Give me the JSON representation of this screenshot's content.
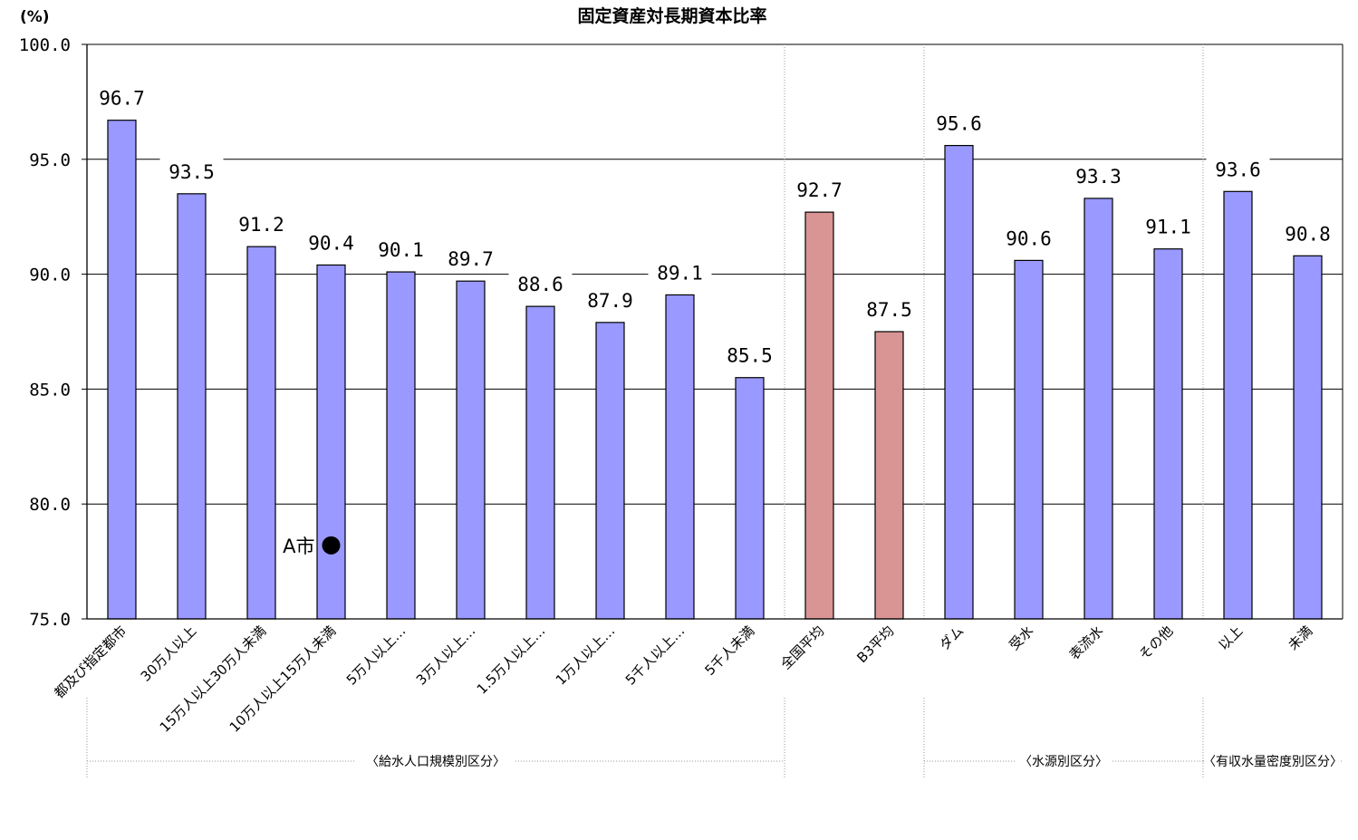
{
  "chart_data": {
    "type": "bar",
    "title": "固定資産対長期資本比率",
    "ylabel": "(%)",
    "xlabel": "",
    "ylim": [
      75.0,
      100.0
    ],
    "yticks": [
      "100.0",
      "95.0",
      "90.0",
      "85.0",
      "80.0",
      "75.0"
    ],
    "ytick_values": [
      100,
      95,
      90,
      85,
      80,
      75
    ],
    "grid": true,
    "categories": [
      "都及び指定都市",
      "30万人以上",
      "15万人以上30万人未満",
      "10万人以上15万人未満",
      "5万人以上…",
      "3万人以上…",
      "1.5万人以上…",
      "1万人以上…",
      "5千人以上…",
      "5千人未満",
      "全国平均",
      "B3平均",
      "ダム",
      "受水",
      "表流水",
      "その他",
      "以上",
      "未満"
    ],
    "values": [
      96.7,
      93.5,
      91.2,
      90.4,
      90.1,
      89.7,
      88.6,
      87.9,
      89.1,
      85.5,
      92.7,
      87.5,
      95.6,
      90.6,
      93.3,
      91.1,
      93.6,
      90.8
    ],
    "value_labels": [
      "96.7",
      "93.5",
      "91.2",
      "90.4",
      "90.1",
      "89.7",
      "88.6",
      "87.9",
      "89.1",
      "85.5",
      "92.7",
      "87.5",
      "95.6",
      "90.6",
      "93.3",
      "91.1",
      "93.6",
      "90.8"
    ],
    "highlight_categories": [
      "全国平均",
      "B3平均"
    ],
    "colors": {
      "bar": "#9999ff",
      "highlight": "#d99594",
      "axis": "#000000",
      "grid": "#000000",
      "separator": "#999999"
    },
    "groups": [
      {
        "label": "〈給水人口規模別区分〉"
      },
      {
        "label": "〈水源別区分〉"
      },
      {
        "label": "〈有収水量密度別区分〉"
      }
    ],
    "marker": {
      "label": "A市",
      "category": "10万人以上15万人未満",
      "value": 78.2,
      "shape": "filled-circle"
    }
  }
}
